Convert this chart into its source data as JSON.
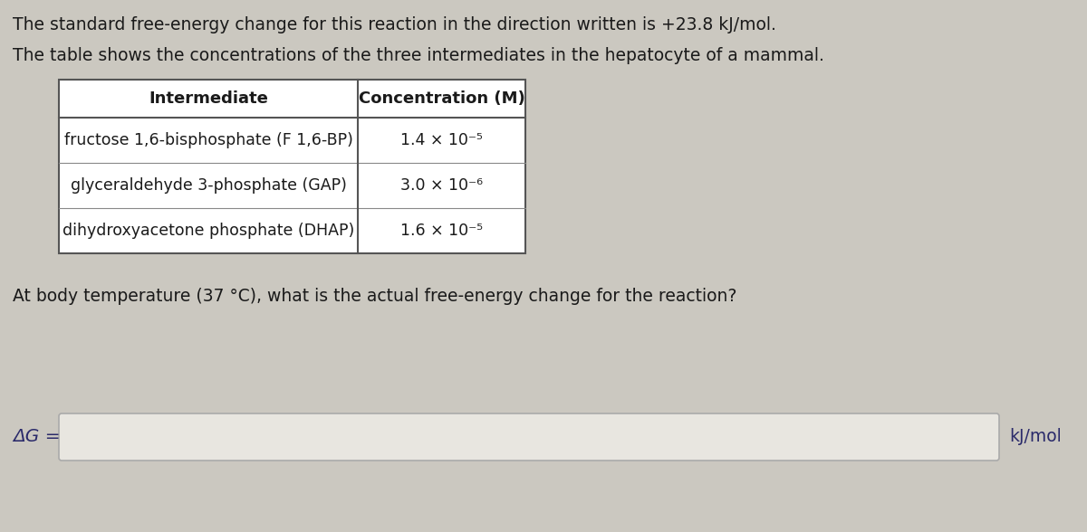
{
  "bg_color": "#cbc8c0",
  "line1": "The standard free-energy change for this reaction in the direction written is +23.8 kJ/mol.",
  "line2": "The table shows the concentrations of the three intermediates in the hepatocyte of a mammal.",
  "table_headers": [
    "Intermediate",
    "Concentration (M)"
  ],
  "table_rows": [
    [
      "fructose 1,6-bisphosphate (F 1,6-BP)",
      "1.4 × 10⁻⁵"
    ],
    [
      "glyceraldehyde 3-phosphate (GAP)",
      "3.0 × 10⁻⁶"
    ],
    [
      "dihydroxyacetone phosphate (DHAP)",
      "1.6 × 10⁻⁵"
    ]
  ],
  "question": "At body temperature (37 °C), what is the actual free-energy change for the reaction?",
  "answer_label": "ΔG =",
  "answer_unit": "kJ/mol",
  "font_size": 13.5,
  "table_font_size": 13.0,
  "answer_box_color": "#e8e6e0",
  "answer_label_color": "#2a2a6a",
  "answer_unit_color": "#2a2a6a",
  "table_bg": "white",
  "text_color": "#1a1a1a"
}
